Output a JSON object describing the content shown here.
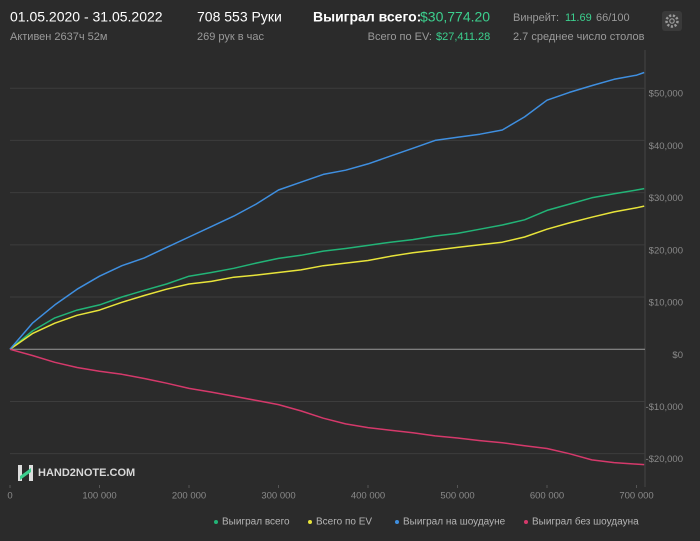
{
  "header": {
    "date_range": "01.05.2020 - 31.05.2022",
    "active": "Активен 2637ч 52м",
    "hands": "708 553 Руки",
    "hands_per_hour": "269 рук в час",
    "won_total_label": "Выиграл всего:",
    "won_total": "$30,774.20",
    "ev_total_label": "Всего по EV:",
    "ev_total": "$27,411.28",
    "winrate_label": "Винрейт:",
    "winrate": "11.69",
    "winrate_unit": "66/100",
    "tables": "2.7 среднее число столов"
  },
  "watermark": "HAND2NOTE.COM",
  "chart_data": {
    "type": "line",
    "x": [
      0,
      25000,
      50000,
      75000,
      100000,
      125000,
      150000,
      175000,
      200000,
      225000,
      250000,
      275000,
      300000,
      325000,
      350000,
      375000,
      400000,
      425000,
      450000,
      475000,
      500000,
      525000,
      550000,
      575000,
      600000,
      625000,
      650000,
      675000,
      700000,
      708553
    ],
    "series": [
      {
        "name": "Выиграл всего",
        "color": "#22b477",
        "values": [
          0,
          3500,
          6000,
          7500,
          8500,
          10000,
          11300,
          12500,
          14000,
          14700,
          15500,
          16500,
          17400,
          18000,
          18800,
          19300,
          19900,
          20500,
          21000,
          21700,
          22200,
          23000,
          23800,
          24800,
          26600,
          27800,
          29000,
          29800,
          30500,
          30774
        ]
      },
      {
        "name": "Всего по EV",
        "color": "#e8e43a",
        "values": [
          0,
          3000,
          5000,
          6500,
          7500,
          9000,
          10300,
          11500,
          12500,
          13000,
          13800,
          14200,
          14700,
          15200,
          16000,
          16500,
          17000,
          17800,
          18500,
          19000,
          19500,
          20000,
          20500,
          21500,
          23000,
          24200,
          25300,
          26300,
          27100,
          27411
        ]
      },
      {
        "name": "Выиграл на шоудауне",
        "color": "#3f8fe0",
        "values": [
          0,
          5000,
          8500,
          11500,
          14000,
          16000,
          17500,
          19500,
          21500,
          23500,
          25500,
          27800,
          30500,
          32000,
          33500,
          34300,
          35500,
          37000,
          38500,
          40000,
          40600,
          41200,
          42000,
          44500,
          47700,
          49200,
          50500,
          51700,
          52500,
          53000
        ]
      },
      {
        "name": "Выиграл без шоудауна",
        "color": "#d5396b",
        "values": [
          0,
          -1200,
          -2500,
          -3500,
          -4200,
          -4800,
          -5600,
          -6500,
          -7500,
          -8200,
          -9000,
          -9800,
          -10600,
          -11800,
          -13200,
          -14300,
          -15000,
          -15500,
          -16000,
          -16600,
          -17000,
          -17500,
          -17900,
          -18500,
          -19000,
          -20000,
          -21200,
          -21700,
          -22000,
          -22100
        ]
      }
    ],
    "xlim": [
      0,
      710000
    ],
    "xticks": [
      0,
      {
        "value": 100000,
        "label": "100 000"
      },
      {
        "value": 200000,
        "label": "200 000"
      },
      {
        "value": 300000,
        "label": "300 000"
      },
      {
        "value": 400000,
        "label": "400 000"
      },
      {
        "value": 500000,
        "label": "500 000"
      },
      {
        "value": 600000,
        "label": "600 000"
      },
      {
        "value": 700000,
        "label": "700 000"
      }
    ],
    "ylim": [
      -26000,
      60000
    ],
    "yticks": [
      {
        "value": -20000,
        "label": "-$20,000"
      },
      {
        "value": -10000,
        "label": "-$10,000"
      },
      {
        "value": 0,
        "label": "$0"
      },
      {
        "value": 10000,
        "label": "$10,000"
      },
      {
        "value": 20000,
        "label": "$20,000"
      },
      {
        "value": 30000,
        "label": "$30,000"
      },
      {
        "value": 40000,
        "label": "$40,000"
      },
      {
        "value": 50000,
        "label": "$50,000"
      }
    ],
    "grid": true
  }
}
